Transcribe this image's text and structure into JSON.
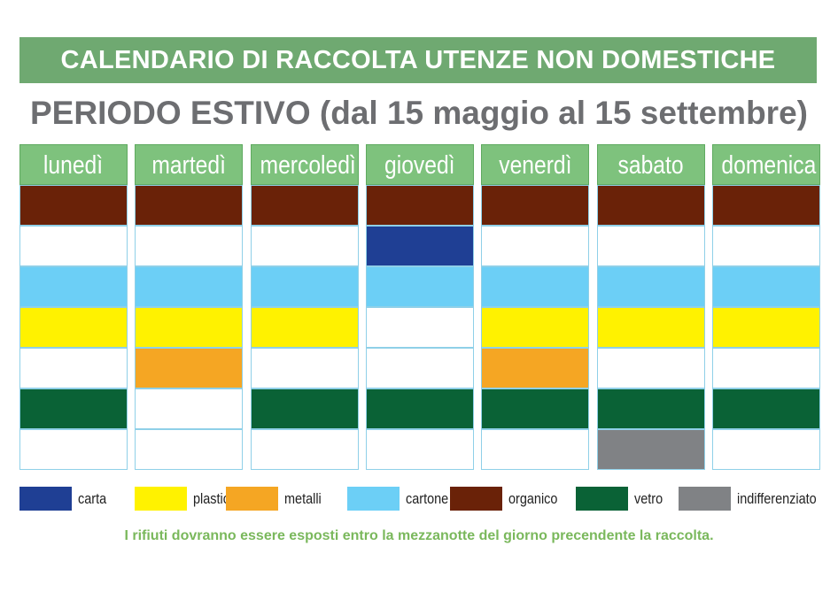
{
  "title": "CALENDARIO DI RACCOLTA UTENZE NON DOMESTICHE",
  "subtitle": "PERIODO ESTIVO (dal 15 maggio al 15 settembre)",
  "colors": {
    "carta": "#1f3f94",
    "plastica": "#fff200",
    "metalli": "#f5a623",
    "cartone": "#6ccff6",
    "organico": "#6a2208",
    "vetro": "#0a6236",
    "indifferenziato": "#808285",
    "empty": "#ffffff"
  },
  "days": [
    {
      "name": "lunedì",
      "slots": [
        "organico",
        "empty",
        "cartone",
        "plastica",
        "empty",
        "vetro",
        "empty"
      ]
    },
    {
      "name": "martedì",
      "slots": [
        "organico",
        "empty",
        "cartone",
        "plastica",
        "metalli",
        "empty",
        "empty"
      ]
    },
    {
      "name": "mercoledì",
      "slots": [
        "organico",
        "empty",
        "cartone",
        "plastica",
        "empty",
        "vetro",
        "empty"
      ]
    },
    {
      "name": "giovedì",
      "slots": [
        "organico",
        "carta",
        "cartone",
        "empty",
        "empty",
        "vetro",
        "empty"
      ]
    },
    {
      "name": "venerdì",
      "slots": [
        "organico",
        "empty",
        "cartone",
        "plastica",
        "metalli",
        "vetro",
        "empty"
      ]
    },
    {
      "name": "sabato",
      "slots": [
        "organico",
        "empty",
        "cartone",
        "plastica",
        "empty",
        "vetro",
        "indifferenziato"
      ]
    },
    {
      "name": "domenica",
      "slots": [
        "organico",
        "empty",
        "cartone",
        "plastica",
        "empty",
        "vetro",
        "empty"
      ]
    }
  ],
  "legend": [
    {
      "key": "carta",
      "label": "carta"
    },
    {
      "key": "plastica",
      "label": "plastica"
    },
    {
      "key": "metalli",
      "label": "metalli"
    },
    {
      "key": "cartone",
      "label": "cartone"
    },
    {
      "key": "organico",
      "label": "organico"
    },
    {
      "key": "vetro",
      "label": "vetro"
    },
    {
      "key": "indifferenziato",
      "label": "indifferenziato"
    }
  ],
  "footer": "I rifiuti dovranno essere esposti entro la mezzanotte del giorno precendente la raccolta."
}
